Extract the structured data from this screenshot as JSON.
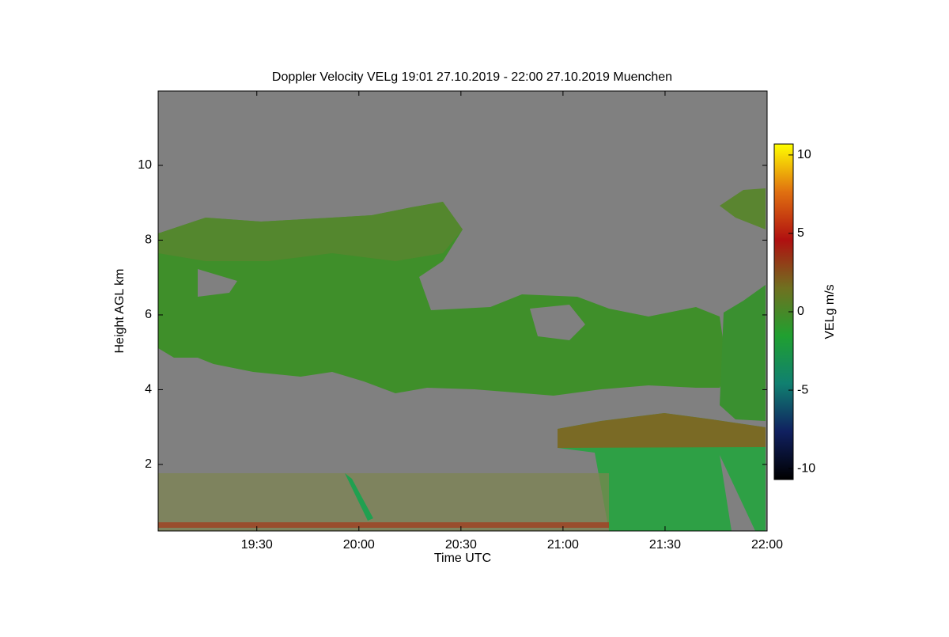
{
  "chart_data": {
    "type": "heatmap",
    "title": "Doppler Velocity VELg   19:01 27.10.2019 - 22:00 27.10.2019 Muenchen",
    "x_label": "Time UTC",
    "y_label": "Height AGL km",
    "colorbar_label": "VELg m/s",
    "xlim": [
      19.0167,
      22.0
    ],
    "xticks": [
      {
        "value": 19.5,
        "label": "19:30"
      },
      {
        "value": 20.0,
        "label": "20:00"
      },
      {
        "value": 20.5,
        "label": "20:30"
      },
      {
        "value": 21.0,
        "label": "21:00"
      },
      {
        "value": 21.5,
        "label": "21:30"
      },
      {
        "value": 22.0,
        "label": "22:00"
      }
    ],
    "ylim": [
      0.22,
      11.99
    ],
    "yticks": [
      2,
      4,
      6,
      8,
      10
    ],
    "clim": [
      -10.7,
      10.7
    ],
    "cticks": [
      -10,
      -5,
      0,
      5,
      10
    ],
    "colormap": [
      "#000000",
      "#102060",
      "#108070",
      "#20a030",
      "#707020",
      "#b01010",
      "#e07010",
      "#ffff00"
    ]
  }
}
